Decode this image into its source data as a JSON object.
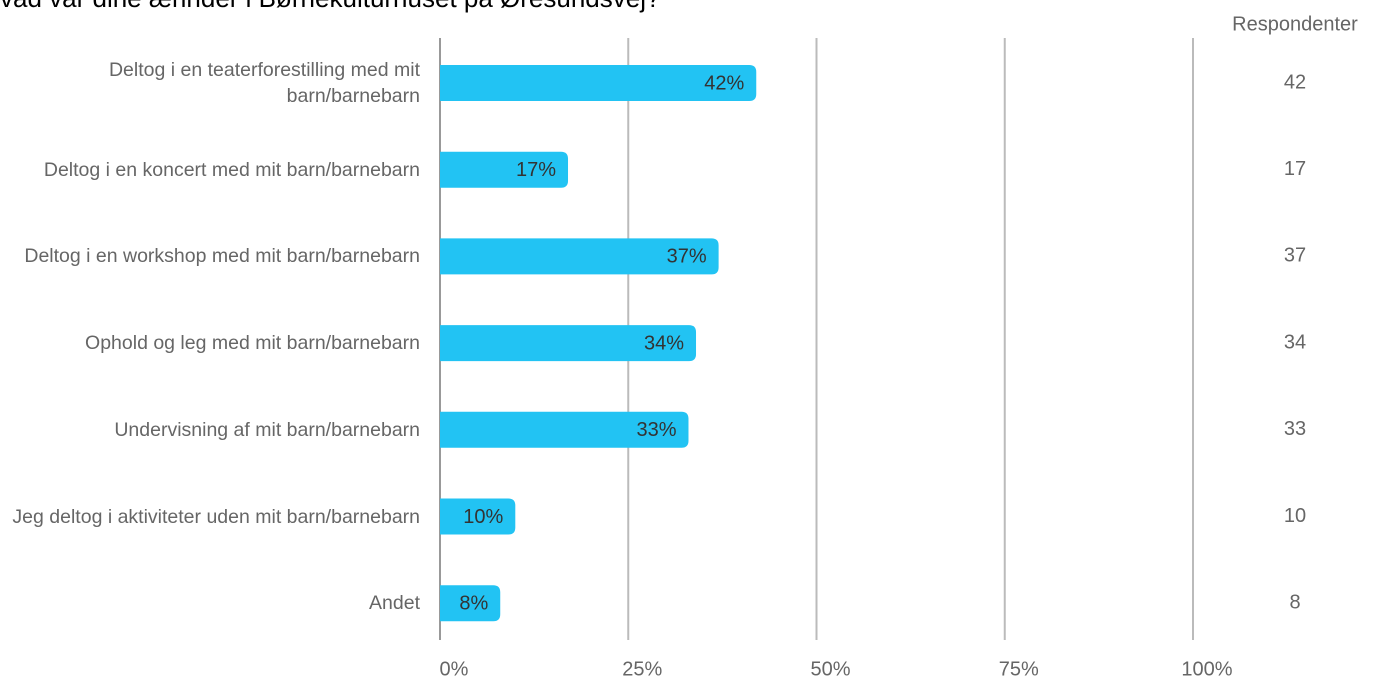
{
  "chart_data": {
    "type": "bar",
    "orientation": "horizontal",
    "title": "vad var dine ærinder i Børnekulturhuset på Øresundsvej?",
    "categories": [
      "Deltog i en teaterforestilling med mit barn/barnebarn",
      "Deltog i en koncert med mit barn/barnebarn",
      "Deltog i en workshop med mit barn/barnebarn",
      "Ophold og leg med mit barn/barnebarn",
      "Undervisning af mit barn/barnebarn",
      "Jeg deltog i aktiviteter uden mit barn/barnebarn",
      "Andet"
    ],
    "values": [
      42,
      17,
      37,
      34,
      33,
      10,
      8
    ],
    "value_labels": [
      "42%",
      "17%",
      "37%",
      "34%",
      "33%",
      "10%",
      "8%"
    ],
    "color": "#22c3f3",
    "respondents_label": "Respondenter",
    "respondents": [
      42,
      17,
      37,
      34,
      33,
      10,
      8
    ],
    "xlim": [
      0,
      100
    ],
    "xticks": [
      {
        "value": 0,
        "label": "0%"
      },
      {
        "value": 25,
        "label": "25%"
      },
      {
        "value": 50,
        "label": "50%"
      },
      {
        "value": 75,
        "label": "75%"
      },
      {
        "value": 100,
        "label": "100%"
      }
    ],
    "grid": true
  }
}
